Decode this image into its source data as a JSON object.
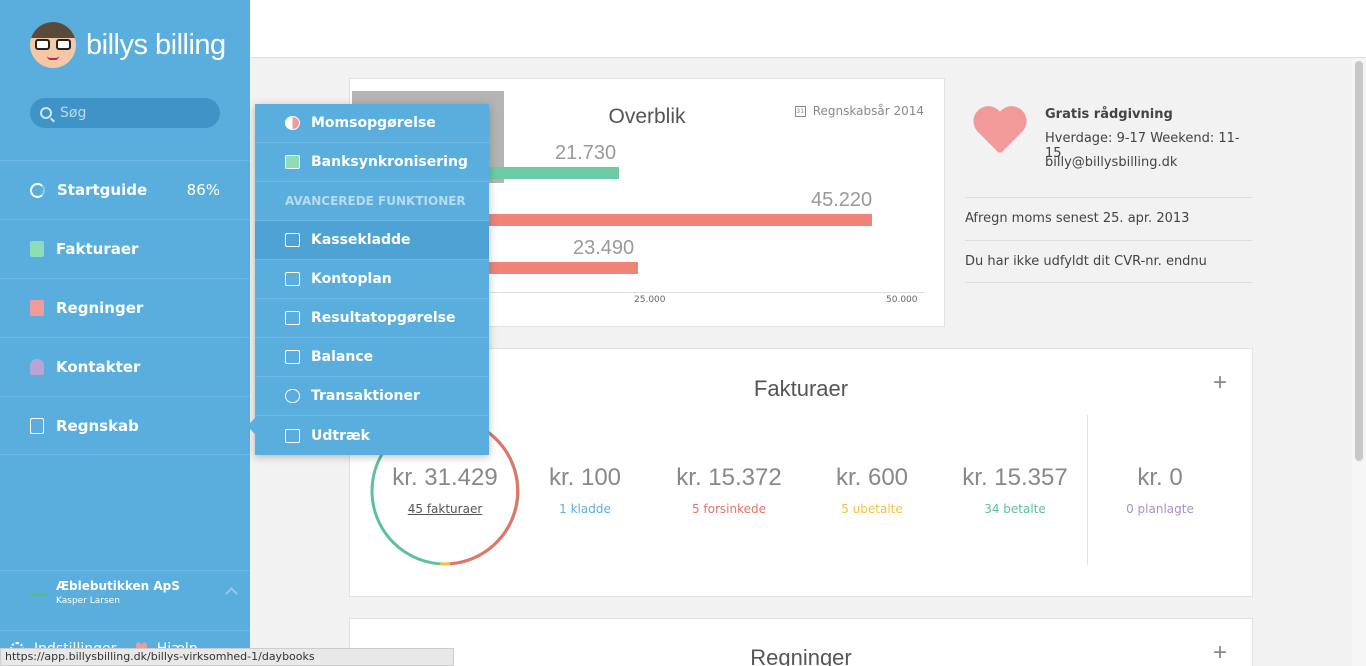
{
  "app": {
    "name": "billys billing"
  },
  "search": {
    "placeholder": "Søg"
  },
  "sidebar": {
    "items": [
      {
        "label": "Startguide",
        "extra": "86%"
      },
      {
        "label": "Fakturaer"
      },
      {
        "label": "Regninger"
      },
      {
        "label": "Kontakter"
      },
      {
        "label": "Regnskab"
      }
    ],
    "company": {
      "name": "Æblebutikken ApS",
      "user": "Kasper Larsen"
    },
    "bottom": {
      "settings": "Indstillinger",
      "help": "Hjælp"
    }
  },
  "dropdown": {
    "items": [
      {
        "label": "Momsopgørelse"
      },
      {
        "label": "Banksynkronisering"
      }
    ],
    "header": "AVANCEREDE FUNKTIONER",
    "advanced": [
      {
        "label": "Kassekladde"
      },
      {
        "label": "Kontoplan"
      },
      {
        "label": "Resultatopgørelse"
      },
      {
        "label": "Balance"
      },
      {
        "label": "Transaktioner"
      },
      {
        "label": "Udtræk"
      }
    ]
  },
  "overblik": {
    "title": "Overblik",
    "year": "Regnskabsår 2014",
    "bars": [
      {
        "label": "21.730",
        "value": 21730,
        "color": "#6ccba6"
      },
      {
        "label": "45.220",
        "value": 45220,
        "color": "#f08378"
      },
      {
        "label": "23.490",
        "value": 23490,
        "color": "#f08378"
      }
    ],
    "ticks": [
      "25.000",
      "50.000"
    ]
  },
  "info": {
    "title": "Gratis rådgivning",
    "hours": "Hverdage: 9-17 Weekend: 11-15",
    "email": "billy@billysbilling.dk",
    "notices": [
      "Afregn moms senest 25. apr. 2013",
      "Du har ikke udfyldt dit CVR-nr. endnu"
    ]
  },
  "fakturaer": {
    "title": "Fakturaer",
    "total": {
      "amount": "kr. 31.429",
      "label": "45 fakturaer"
    },
    "stats": [
      {
        "amount": "kr. 100",
        "label": "1 kladde",
        "color": "#5aaedd"
      },
      {
        "amount": "kr. 15.372",
        "label": "5 forsinkede",
        "color": "#e57368"
      },
      {
        "amount": "kr. 600",
        "label": "5 ubetalte",
        "color": "#f0c24a"
      },
      {
        "amount": "kr. 15.357",
        "label": "34 betalte",
        "color": "#5bc19a"
      },
      {
        "amount": "kr. 0",
        "label": "0 planlagte",
        "color": "#a890c8"
      }
    ]
  },
  "regninger": {
    "title": "Regninger"
  },
  "statusbar": {
    "url": "https://app.billysbilling.dk/billys-virksomhed-1/daybooks"
  }
}
